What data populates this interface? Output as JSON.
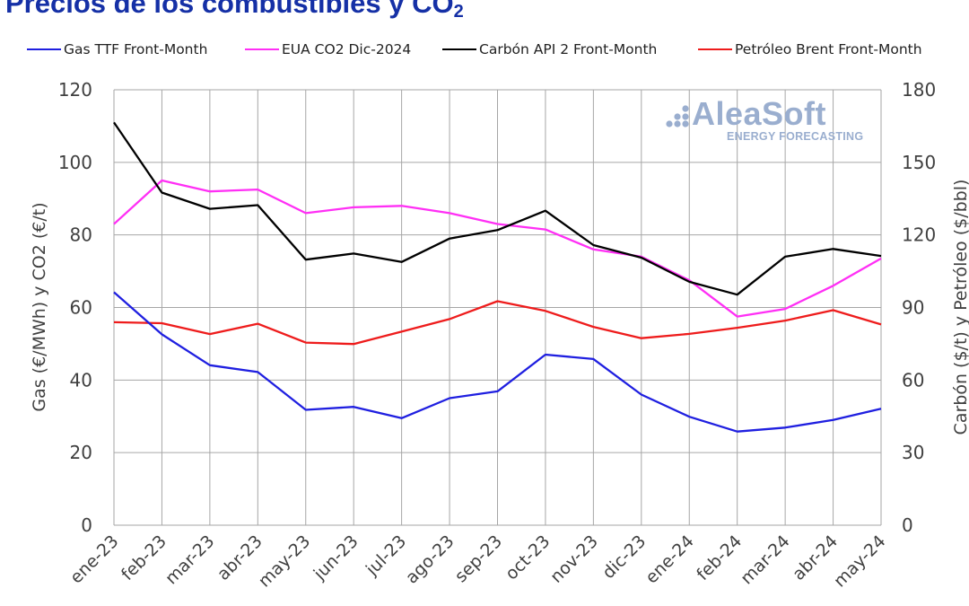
{
  "title_main": "Precios de los combustibles y CO",
  "title_sub": "2",
  "logo": {
    "name": "AleaSoft",
    "tagline": "ENERGY FORECASTING"
  },
  "colors": {
    "gas": "#1f1fe0",
    "eua": "#ff2ff5",
    "coal": "#000000",
    "brent": "#ee1c1c",
    "grid": "#a6a6a6",
    "title": "#1530a6"
  },
  "chart_data": {
    "type": "line",
    "title": "Precios de los combustibles y CO2",
    "categories": [
      "ene-23",
      "feb-23",
      "mar-23",
      "abr-23",
      "may-23",
      "jun-23",
      "jul-23",
      "ago-23",
      "sep-23",
      "oct-23",
      "nov-23",
      "dic-23",
      "ene-24",
      "feb-24",
      "mar-24",
      "abr-24",
      "may-24"
    ],
    "ylabel_left": "Gas (€/MWh) y CO2 (€/t)",
    "ylabel_right": "Carbón ($/t) y Petróleo ($/bbl)",
    "ylim_left": [
      0,
      120
    ],
    "ylim_right": [
      0,
      180
    ],
    "yticks_left": [
      "0",
      "20",
      "40",
      "60",
      "80",
      "100",
      "120"
    ],
    "yticks_right": [
      "0",
      "30",
      "60",
      "90",
      "120",
      "150",
      "180"
    ],
    "grid": true,
    "legend_position": "top",
    "series": [
      {
        "name": "Gas TTF Front-Month",
        "axis": "left",
        "values": [
          64.2,
          52.6,
          44.1,
          42.2,
          31.8,
          32.6,
          29.5,
          35.0,
          36.9,
          47.0,
          45.8,
          36.0,
          29.9,
          25.8,
          26.9,
          29.0,
          32.1
        ]
      },
      {
        "name": "EUA CO2 Dic-2024",
        "axis": "left",
        "values": [
          83.0,
          95.0,
          92.0,
          92.5,
          86.0,
          87.6,
          88.0,
          86.0,
          83.0,
          81.5,
          76.0,
          74.0,
          67.5,
          57.5,
          59.6,
          66.0,
          73.5
        ]
      },
      {
        "name": "Carbón API 2 Front-Month",
        "axis": "right",
        "values": [
          166.5,
          137.5,
          130.8,
          132.3,
          109.8,
          112.3,
          108.8,
          118.5,
          122.0,
          130.0,
          115.8,
          110.6,
          100.6,
          95.3,
          111.0,
          114.2,
          111.3
        ]
      },
      {
        "name": "Petróleo Brent Front-Month",
        "axis": "right",
        "values": [
          83.9,
          83.5,
          79.0,
          83.3,
          75.5,
          74.9,
          80.0,
          85.2,
          92.6,
          88.6,
          82.0,
          77.3,
          79.1,
          81.6,
          84.6,
          88.9,
          83.0
        ]
      }
    ]
  }
}
